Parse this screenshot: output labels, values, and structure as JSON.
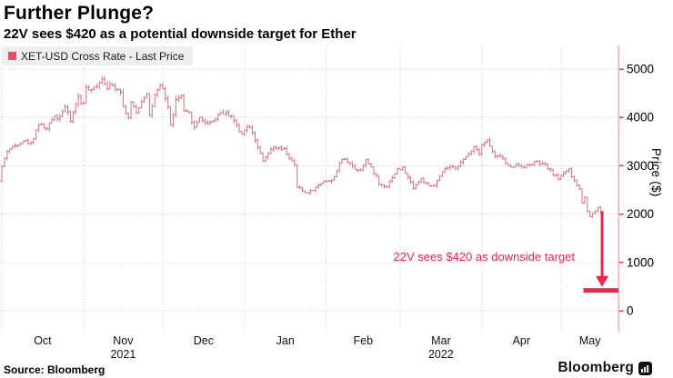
{
  "header": {
    "title": "Further Plunge?",
    "subtitle": "22V sees $420 as a potential downside target for Ether"
  },
  "chart_data": {
    "type": "ohlc_bars",
    "title": "Further Plunge?",
    "subtitle": "22V sees $420 as a potential downside target for Ether",
    "series_name": "XET-USD Cross Rate - Last Price",
    "ylabel": "Price ($)",
    "ylim": [
      0,
      5300
    ],
    "y_ticks": [
      0,
      1000,
      2000,
      3000,
      4000,
      5000
    ],
    "grid": "dotted",
    "legend_position": "top-left",
    "x_axis": {
      "unit": "day-index from Oct 1 2021",
      "months": [
        {
          "label": "Oct",
          "start_day": 0
        },
        {
          "label": "Nov",
          "start_day": 31
        },
        {
          "label": "Dec",
          "start_day": 61
        },
        {
          "label": "Jan",
          "start_day": 92
        },
        {
          "label": "Feb",
          "start_day": 123
        },
        {
          "label": "Mar",
          "start_day": 151
        },
        {
          "label": "Apr",
          "start_day": 182
        },
        {
          "label": "May",
          "start_day": 212
        }
      ],
      "end_day": 234,
      "years": [
        {
          "label": "2021",
          "center_day": 46
        },
        {
          "label": "2022",
          "center_day": 166.5
        }
      ]
    },
    "series": {
      "last_day": 227,
      "close_keypoints": [
        [
          0,
          2980
        ],
        [
          2,
          3310
        ],
        [
          5,
          3420
        ],
        [
          8,
          3520
        ],
        [
          11,
          3460
        ],
        [
          14,
          3870
        ],
        [
          17,
          3750
        ],
        [
          20,
          4060
        ],
        [
          21,
          3970
        ],
        [
          24,
          4220
        ],
        [
          26,
          3925
        ],
        [
          28,
          4290
        ],
        [
          29,
          4420
        ],
        [
          30,
          4290
        ],
        [
          31,
          4324
        ],
        [
          32,
          4590
        ],
        [
          34,
          4540
        ],
        [
          38,
          4810
        ],
        [
          39,
          4730
        ],
        [
          40,
          4640
        ],
        [
          42,
          4650
        ],
        [
          45,
          4570
        ],
        [
          46,
          4220
        ],
        [
          48,
          3997
        ],
        [
          49,
          4300
        ],
        [
          51,
          4090
        ],
        [
          53,
          4340
        ],
        [
          55,
          4520
        ],
        [
          56,
          4040
        ],
        [
          58,
          4440
        ],
        [
          60,
          4630
        ],
        [
          61,
          4586
        ],
        [
          63,
          4220
        ],
        [
          64,
          3820
        ],
        [
          66,
          4350
        ],
        [
          68,
          4440
        ],
        [
          69,
          4110
        ],
        [
          71,
          4080
        ],
        [
          73,
          3780
        ],
        [
          75,
          4020
        ],
        [
          77,
          3880
        ],
        [
          80,
          3930
        ],
        [
          83,
          4110
        ],
        [
          87,
          4040
        ],
        [
          90,
          3710
        ],
        [
          91,
          3680
        ],
        [
          92,
          3770
        ],
        [
          94,
          3830
        ],
        [
          96,
          3550
        ],
        [
          99,
          3080
        ],
        [
          101,
          3250
        ],
        [
          103,
          3370
        ],
        [
          107,
          3330
        ],
        [
          111,
          3000
        ],
        [
          112,
          2560
        ],
        [
          115,
          2440
        ],
        [
          117,
          2470
        ],
        [
          119,
          2550
        ],
        [
          122,
          2690
        ],
        [
          125,
          2680
        ],
        [
          129,
          3140
        ],
        [
          132,
          3070
        ],
        [
          134,
          2920
        ],
        [
          136,
          2930
        ],
        [
          138,
          3120
        ],
        [
          142,
          2780
        ],
        [
          143,
          2620
        ],
        [
          146,
          2580
        ],
        [
          148,
          2770
        ],
        [
          150,
          2920
        ],
        [
          152,
          2950
        ],
        [
          156,
          2550
        ],
        [
          159,
          2730
        ],
        [
          162,
          2560
        ],
        [
          164,
          2590
        ],
        [
          168,
          2940
        ],
        [
          172,
          2970
        ],
        [
          175,
          3110
        ],
        [
          179,
          3400
        ],
        [
          181,
          3280
        ],
        [
          182,
          3450
        ],
        [
          184,
          3520
        ],
        [
          187,
          3170
        ],
        [
          189,
          3210
        ],
        [
          192,
          2980
        ],
        [
          195,
          3010
        ],
        [
          199,
          2990
        ],
        [
          202,
          3080
        ],
        [
          206,
          3010
        ],
        [
          208,
          2890
        ],
        [
          211,
          2730
        ],
        [
          213,
          2860
        ],
        [
          215,
          2940
        ],
        [
          216,
          2750
        ],
        [
          219,
          2520
        ],
        [
          220,
          2230
        ],
        [
          221,
          2340
        ],
        [
          222,
          2080
        ],
        [
          223,
          1960
        ],
        [
          224,
          2010
        ],
        [
          226,
          2145
        ],
        [
          227,
          2020
        ]
      ],
      "jitter": 0.02,
      "range_frac": 0.014,
      "seed": 42
    },
    "annotation": {
      "text": "22V sees $420 as downside target"
    },
    "arrow": {
      "day": 227.6,
      "from_price": 2060,
      "to_price": 700
    },
    "target_line": {
      "price": 420,
      "from_day": 220.5
    },
    "colors": {
      "bars": "#d1737e",
      "accent": "#e8294b",
      "axis_line": "#f2aeb6",
      "axis_tick": "#dd3a55",
      "grid": "#c9c9c9",
      "legend_bg": "#efefef",
      "legend_swatch": "#e75062",
      "text": "#000000"
    }
  },
  "footer": {
    "source": "Source: Bloomberg",
    "brand": "Bloomberg"
  }
}
